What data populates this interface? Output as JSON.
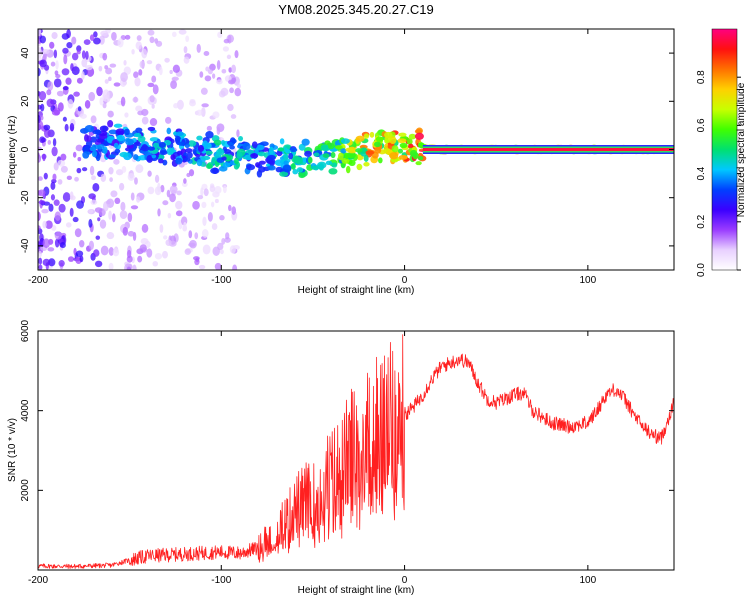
{
  "figure_title": "YM08.2025.345.20.27.C19",
  "chart_data": [
    {
      "type": "heatmap",
      "title": "YM08.2025.345.20.27.C19",
      "xlabel": "Height of straight line (km)",
      "ylabel": "Frequency (Hz)",
      "xlim": [
        -200,
        147
      ],
      "ylim": [
        -50,
        50
      ],
      "xticks": [
        -200,
        -100,
        0,
        100
      ],
      "yticks": [
        -40,
        -20,
        0,
        20,
        40
      ],
      "grid": false,
      "description_series": [
        {
          "name": "dominant_frequency_track_hz",
          "x": [
            -180,
            -160,
            -140,
            -120,
            -100,
            -80,
            -60,
            -40,
            -20,
            0,
            20,
            60,
            100,
            140
          ],
          "y": [
            4,
            3,
            2,
            1,
            -2,
            -3,
            -5,
            -2,
            1,
            1,
            0,
            0,
            0,
            0
          ]
        },
        {
          "name": "peak_normalized_amplitude",
          "x": [
            -180,
            -160,
            -140,
            -120,
            -100,
            -80,
            -60,
            -40,
            -20,
            0,
            20,
            60,
            100,
            140
          ],
          "y": [
            0.35,
            0.4,
            0.45,
            0.45,
            0.5,
            0.45,
            0.5,
            0.55,
            0.85,
            0.9,
            0.95,
            0.95,
            0.9,
            0.7
          ]
        }
      ],
      "colorbar": {
        "label": "Normalized spectral amplitude",
        "range": [
          0,
          1
        ],
        "ticks": [
          0.0,
          0.2,
          0.4,
          0.6,
          0.8
        ],
        "colors": [
          "#ffffff",
          "#e8d0ff",
          "#9a3cff",
          "#3a00ff",
          "#0040ff",
          "#00c8ff",
          "#00e070",
          "#40ff00",
          "#c8ff00",
          "#ffd000",
          "#ff7000",
          "#ff1010",
          "#ff0080"
        ]
      }
    },
    {
      "type": "line",
      "xlabel": "Height of straight line (km)",
      "ylabel": "SNR (10 * v/v)",
      "xlim": [
        -200,
        147
      ],
      "ylim": [
        0,
        6000
      ],
      "xticks": [
        -200,
        -100,
        0,
        100
      ],
      "yticks": [
        2000,
        4000,
        6000
      ],
      "color": "#ff2020",
      "series": [
        {
          "name": "SNR",
          "x": [
            -200,
            -180,
            -160,
            -150,
            -140,
            -120,
            -100,
            -90,
            -80,
            -75,
            -70,
            -65,
            -60,
            -55,
            -50,
            -45,
            -40,
            -35,
            -30,
            -25,
            -20,
            -15,
            -10,
            -5,
            0,
            5,
            10,
            15,
            20,
            25,
            30,
            35,
            40,
            45,
            50,
            55,
            60,
            65,
            70,
            75,
            80,
            90,
            100,
            105,
            110,
            115,
            120,
            125,
            130,
            135,
            140,
            147
          ],
          "y": [
            100,
            90,
            120,
            250,
            350,
            400,
            450,
            420,
            550,
            800,
            1000,
            1200,
            1500,
            1800,
            1700,
            2200,
            2300,
            2600,
            2900,
            3300,
            3300,
            3500,
            3600,
            3800,
            3900,
            4100,
            4400,
            4800,
            5100,
            5200,
            5300,
            5200,
            4700,
            4300,
            4200,
            4300,
            4400,
            4450,
            4000,
            3850,
            3700,
            3600,
            3700,
            4000,
            4400,
            4550,
            4300,
            3900,
            3600,
            3400,
            3300,
            4200
          ]
        }
      ]
    }
  ]
}
